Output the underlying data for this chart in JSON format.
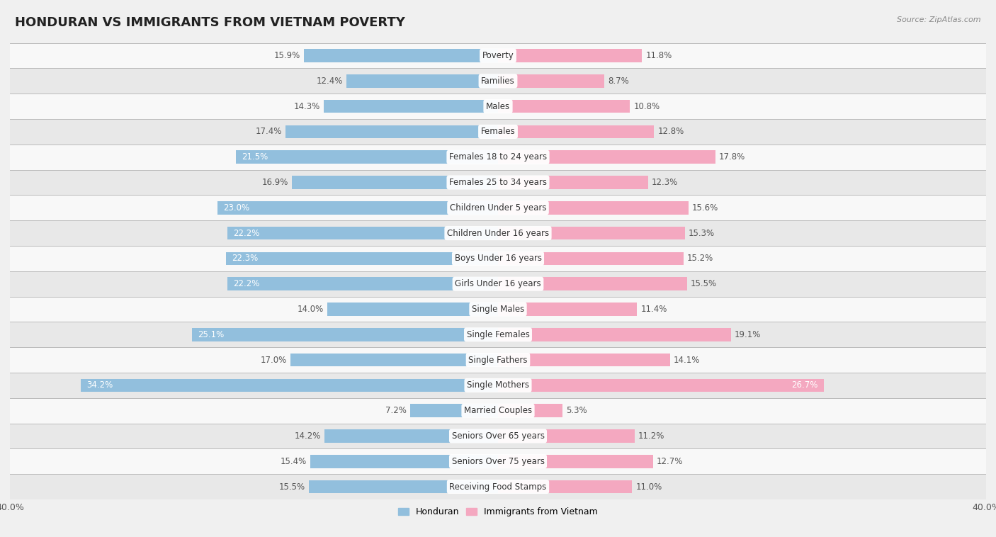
{
  "title": "HONDURAN VS IMMIGRANTS FROM VIETNAM POVERTY",
  "source": "Source: ZipAtlas.com",
  "categories": [
    "Poverty",
    "Families",
    "Males",
    "Females",
    "Females 18 to 24 years",
    "Females 25 to 34 years",
    "Children Under 5 years",
    "Children Under 16 years",
    "Boys Under 16 years",
    "Girls Under 16 years",
    "Single Males",
    "Single Females",
    "Single Fathers",
    "Single Mothers",
    "Married Couples",
    "Seniors Over 65 years",
    "Seniors Over 75 years",
    "Receiving Food Stamps"
  ],
  "honduran": [
    15.9,
    12.4,
    14.3,
    17.4,
    21.5,
    16.9,
    23.0,
    22.2,
    22.3,
    22.2,
    14.0,
    25.1,
    17.0,
    34.2,
    7.2,
    14.2,
    15.4,
    15.5
  ],
  "vietnam": [
    11.8,
    8.7,
    10.8,
    12.8,
    17.8,
    12.3,
    15.6,
    15.3,
    15.2,
    15.5,
    11.4,
    19.1,
    14.1,
    26.7,
    5.3,
    11.2,
    12.7,
    11.0
  ],
  "honduran_color": "#92bfdd",
  "vietnam_color": "#f4a8c0",
  "background_color": "#f0f0f0",
  "row_bg_even": "#e8e8e8",
  "row_bg_odd": "#f8f8f8",
  "xlim": 40.0,
  "bar_height": 0.52,
  "label_fontsize": 8.5,
  "category_fontsize": 8.5,
  "title_fontsize": 13,
  "legend_fontsize": 9,
  "axis_label_fontsize": 9,
  "inside_label_threshold": 20.0
}
